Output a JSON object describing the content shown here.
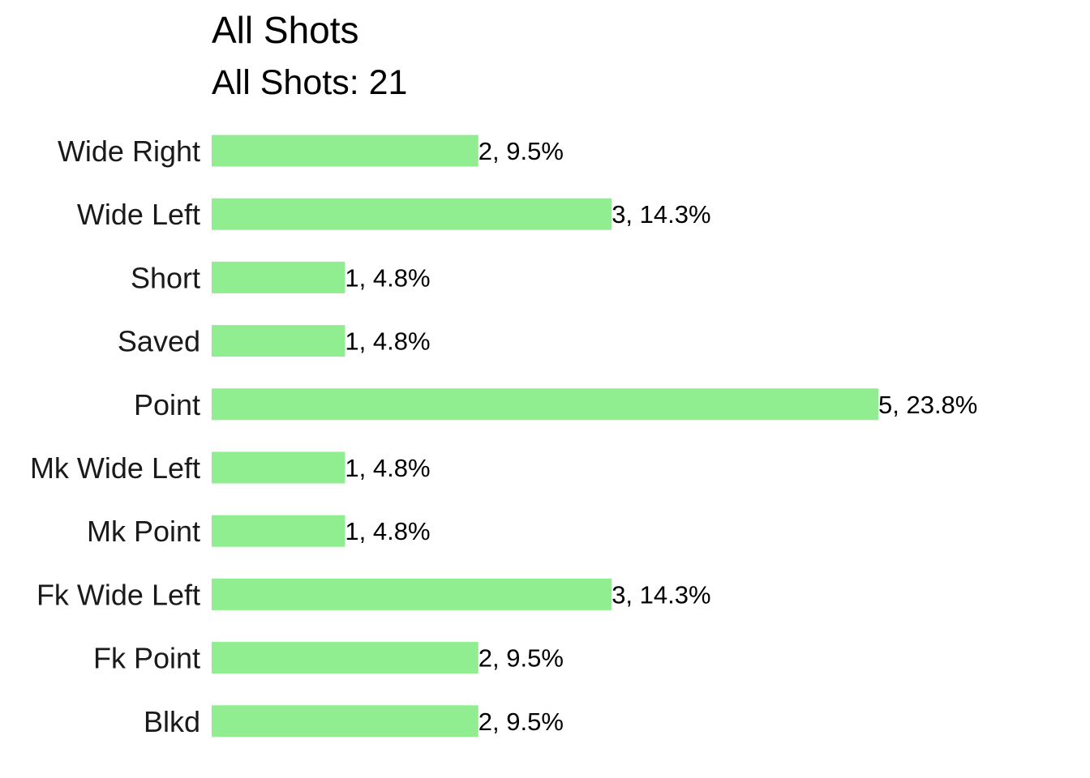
{
  "chart_data": {
    "type": "bar",
    "orientation": "horizontal",
    "title": "All Shots",
    "subtitle": "All Shots: 21",
    "categories": [
      "Wide Right",
      "Wide Left",
      "Short",
      "Saved",
      "Point",
      "Mk Wide Left",
      "Mk Point",
      "Fk Wide Left",
      "Fk Point",
      "Blkd"
    ],
    "values": [
      2,
      3,
      1,
      1,
      5,
      1,
      1,
      3,
      2,
      2
    ],
    "labels": [
      "2, 9.5%",
      "3, 14.3%",
      "1, 4.8%",
      "1, 4.8%",
      "5, 23.8%",
      "1, 4.8%",
      "1, 4.8%",
      "3, 14.3%",
      "2, 9.5%",
      "2, 9.5%"
    ],
    "total": 21,
    "xlim": [
      0,
      5
    ],
    "grid": false,
    "legend": "none",
    "xlabel": "",
    "ylabel": "",
    "bar_color": "#90ee90"
  }
}
